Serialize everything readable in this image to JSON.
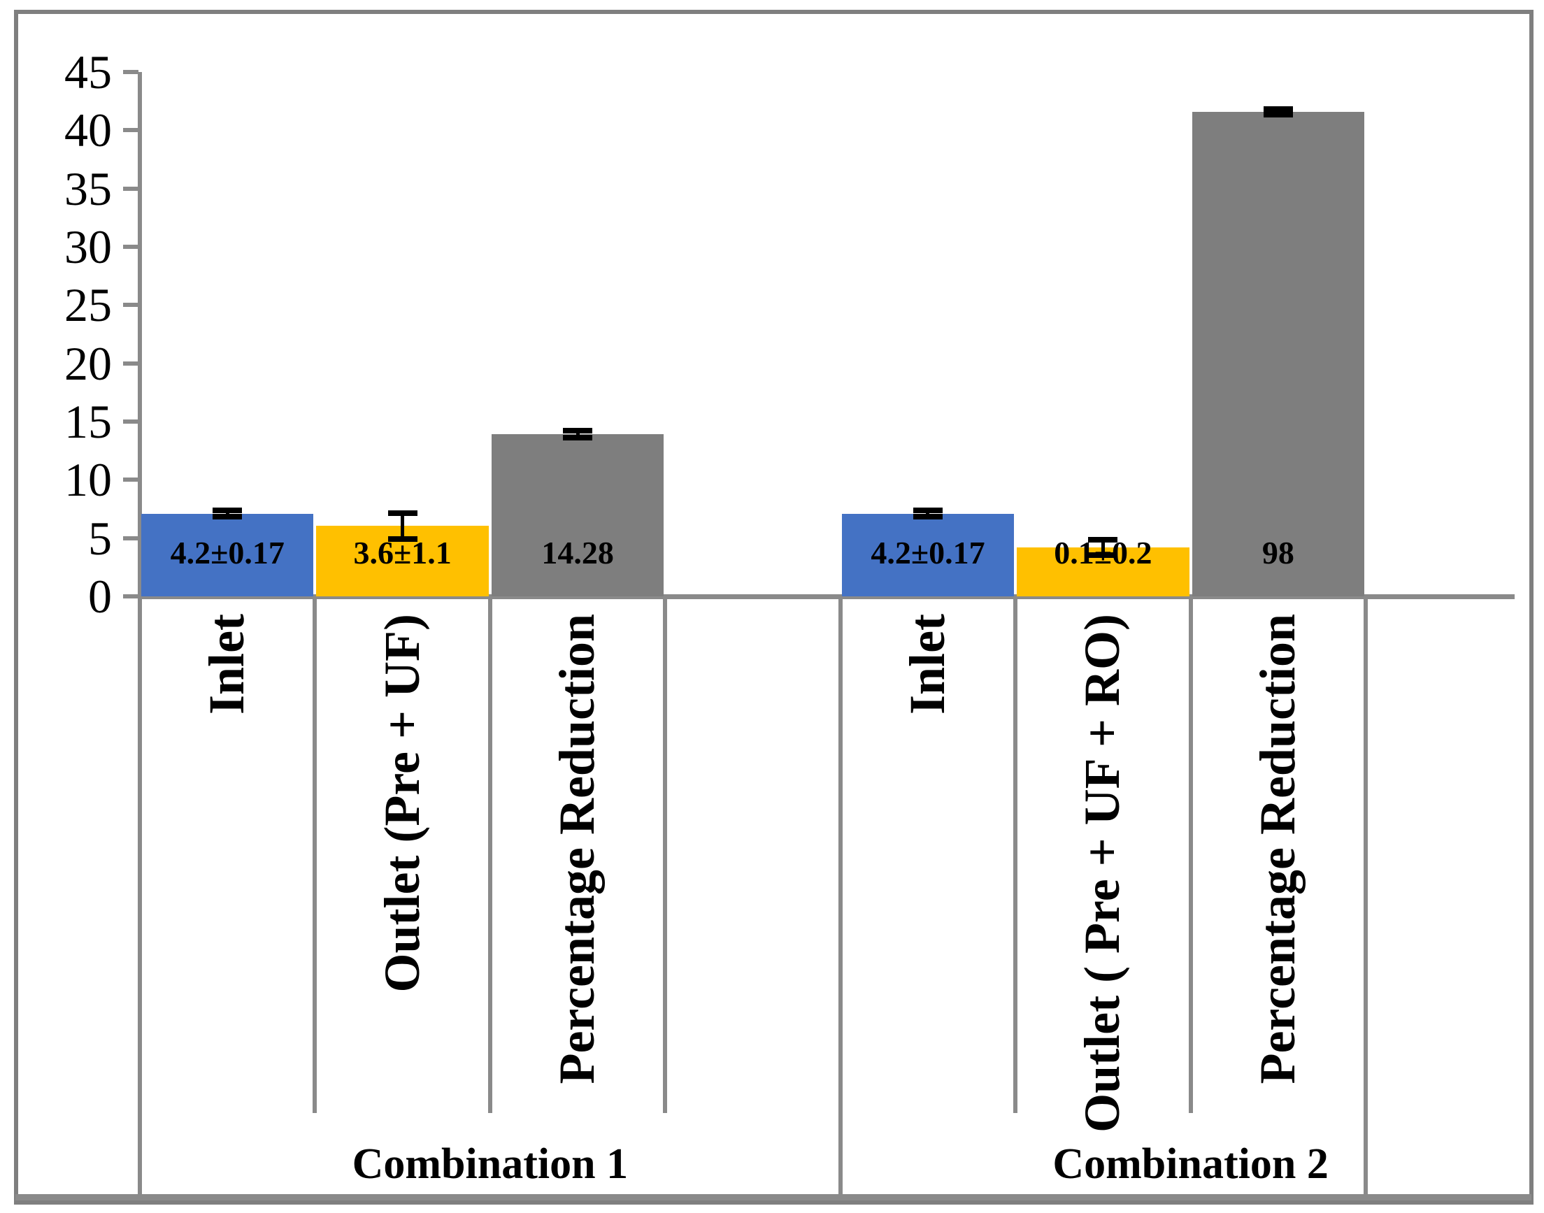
{
  "figure": {
    "background_color": "#FFFFFF",
    "border_color": "#7F7F7F",
    "axis_line_color": "#8A8A8A",
    "error_bar_color": "#000000",
    "text_color": "#000000"
  },
  "chart_data": {
    "type": "bar",
    "title": "",
    "xlabel": "",
    "ylabel": "",
    "legend": "none",
    "grid": "off",
    "y_axis": {
      "min": 0,
      "max": 45,
      "step": 5,
      "tick_labels": [
        "0",
        "5",
        "10",
        "15",
        "20",
        "25",
        "30",
        "35",
        "40",
        "45"
      ]
    },
    "groups": [
      {
        "label": "Combination 1",
        "bars": [
          {
            "category": "Inlet",
            "color": "#4472C4",
            "value": 4.2,
            "error": 0.17,
            "value_label": "4.2±0.17",
            "drawn_value": 7.1,
            "err_center": 7.1,
            "err_delta": 0.27
          },
          {
            "category": "Outlet (Pre + UF)",
            "color": "#FFC000",
            "value": 3.6,
            "error": 1.1,
            "value_label": "3.6±1.1",
            "drawn_value": 6.05,
            "err_center": 6.05,
            "err_delta": 1.1
          },
          {
            "category": "Percentage Reduction",
            "color": "#7E7E7E",
            "value": 14.28,
            "error": 0.3,
            "value_label": "14.28",
            "drawn_value": 13.9,
            "err_center": 13.9,
            "err_delta": 0.3
          }
        ]
      },
      {
        "label": "Combination 2",
        "bars": [
          {
            "category": "Inlet",
            "color": "#4472C4",
            "value": 4.2,
            "error": 0.17,
            "value_label": "4.2±0.17",
            "drawn_value": 7.1,
            "err_center": 7.1,
            "err_delta": 0.27
          },
          {
            "category": "Outlet ( Pre + UF + RO)",
            "color": "#FFC000",
            "value": 0.1,
            "error": 0.2,
            "value_label": "0.1±0.2",
            "drawn_value": 4.2,
            "err_center": 4.2,
            "err_delta": 0.65
          },
          {
            "category": "Percentage Reduction",
            "color": "#7E7E7E",
            "value": 98,
            "error": 0.25,
            "value_label": "98",
            "drawn_value": 41.6,
            "err_center": 41.6,
            "err_delta": 0.25
          }
        ]
      }
    ]
  }
}
